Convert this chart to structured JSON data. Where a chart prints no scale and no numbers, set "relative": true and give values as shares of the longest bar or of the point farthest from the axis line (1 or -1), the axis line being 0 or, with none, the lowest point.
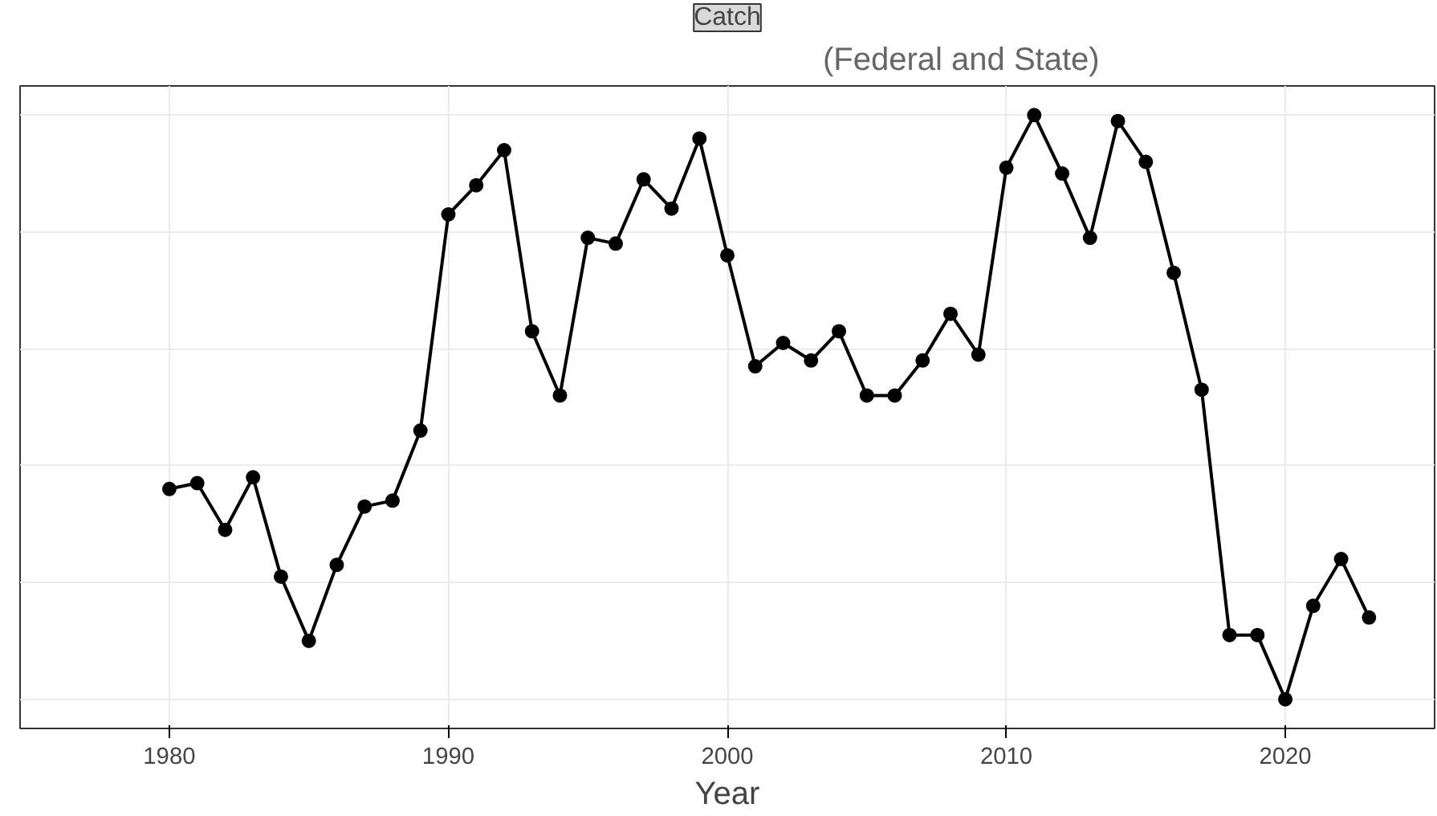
{
  "chart_data": {
    "type": "line",
    "title": "Catch",
    "xlabel": "Year",
    "relative": true,
    "annotations": [
      "(Federal and State)"
    ],
    "x": [
      1980,
      1981,
      1982,
      1983,
      1984,
      1985,
      1986,
      1987,
      1988,
      1989,
      1990,
      1991,
      1992,
      1993,
      1994,
      1995,
      1996,
      1997,
      1998,
      1999,
      2000,
      2001,
      2002,
      2003,
      2004,
      2005,
      2006,
      2007,
      2008,
      2009,
      2010,
      2011,
      2012,
      2013,
      2014,
      2015,
      2016,
      2017,
      2018,
      2019,
      2020,
      2021,
      2022,
      2023
    ],
    "series": [
      {
        "color": "#000000",
        "values": [
          0.36,
          0.37,
          0.29,
          0.38,
          0.21,
          0.1,
          0.23,
          0.33,
          0.34,
          0.46,
          0.83,
          0.88,
          0.94,
          0.63,
          0.52,
          0.79,
          0.78,
          0.89,
          0.84,
          0.96,
          0.76,
          0.57,
          0.61,
          0.58,
          0.63,
          0.52,
          0.52,
          0.58,
          0.66,
          0.59,
          0.91,
          1,
          0.9,
          0.79,
          0.99,
          0.92,
          0.73,
          0.53,
          0.11,
          0.11,
          0,
          0.16,
          0.24,
          0.14
        ]
      }
    ],
    "xlim": [
      1974.65,
      2025.35
    ],
    "xticks": [
      1980,
      1990,
      2000,
      2010,
      2020
    ],
    "grid": true,
    "marker": "circle",
    "line_style": "solid"
  }
}
